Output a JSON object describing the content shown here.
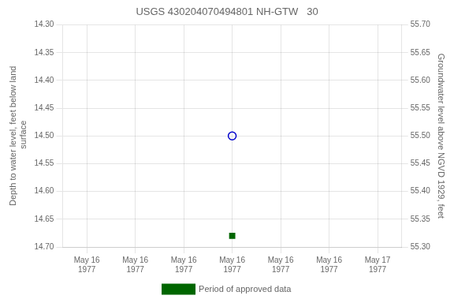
{
  "chart_data": {
    "type": "scatter",
    "title": "USGS 430204070494801 NH-GTW   30",
    "y_label": "Depth to water level, feet below land\n surface",
    "y2_label": "Groundwater level above NGVD 1929, feet",
    "categories": [
      "May 16\n1977",
      "May 16\n1977",
      "May 16\n1977",
      "May 16\n1977",
      "May 16\n1977",
      "May 16\n1977",
      "May 17\n1977"
    ],
    "series": [
      {
        "color": "#0000cc",
        "marker": "open_circle",
        "values": [
          null,
          null,
          null,
          14.5,
          null,
          null,
          null
        ]
      },
      {
        "name": "Period of approved data",
        "color": "#006600",
        "marker": "square",
        "values": [
          null,
          null,
          null,
          14.68,
          null,
          null,
          null
        ]
      }
    ],
    "ylim": [
      14.7,
      14.3
    ],
    "yticks": [
      {
        "value": 14.3,
        "label": "14.30"
      },
      14.35,
      {
        "value": 14.4,
        "label": "14.40"
      },
      14.45,
      {
        "value": 14.5,
        "label": "14.50"
      },
      14.55,
      {
        "value": 14.6,
        "label": "14.60"
      },
      14.65,
      {
        "value": 14.7,
        "label": "14.70"
      }
    ],
    "y2lim": [
      55.3,
      55.7
    ],
    "y2ticks": [
      {
        "value": 55.7,
        "label": "55.70"
      },
      55.65,
      {
        "value": 55.6,
        "label": "55.60"
      },
      55.55,
      {
        "value": 55.5,
        "label": "55.50"
      },
      55.45,
      {
        "value": 55.4,
        "label": "55.40"
      },
      55.35,
      {
        "value": 55.3,
        "label": "55.30"
      }
    ],
    "grid": true,
    "legend": "bottom"
  }
}
